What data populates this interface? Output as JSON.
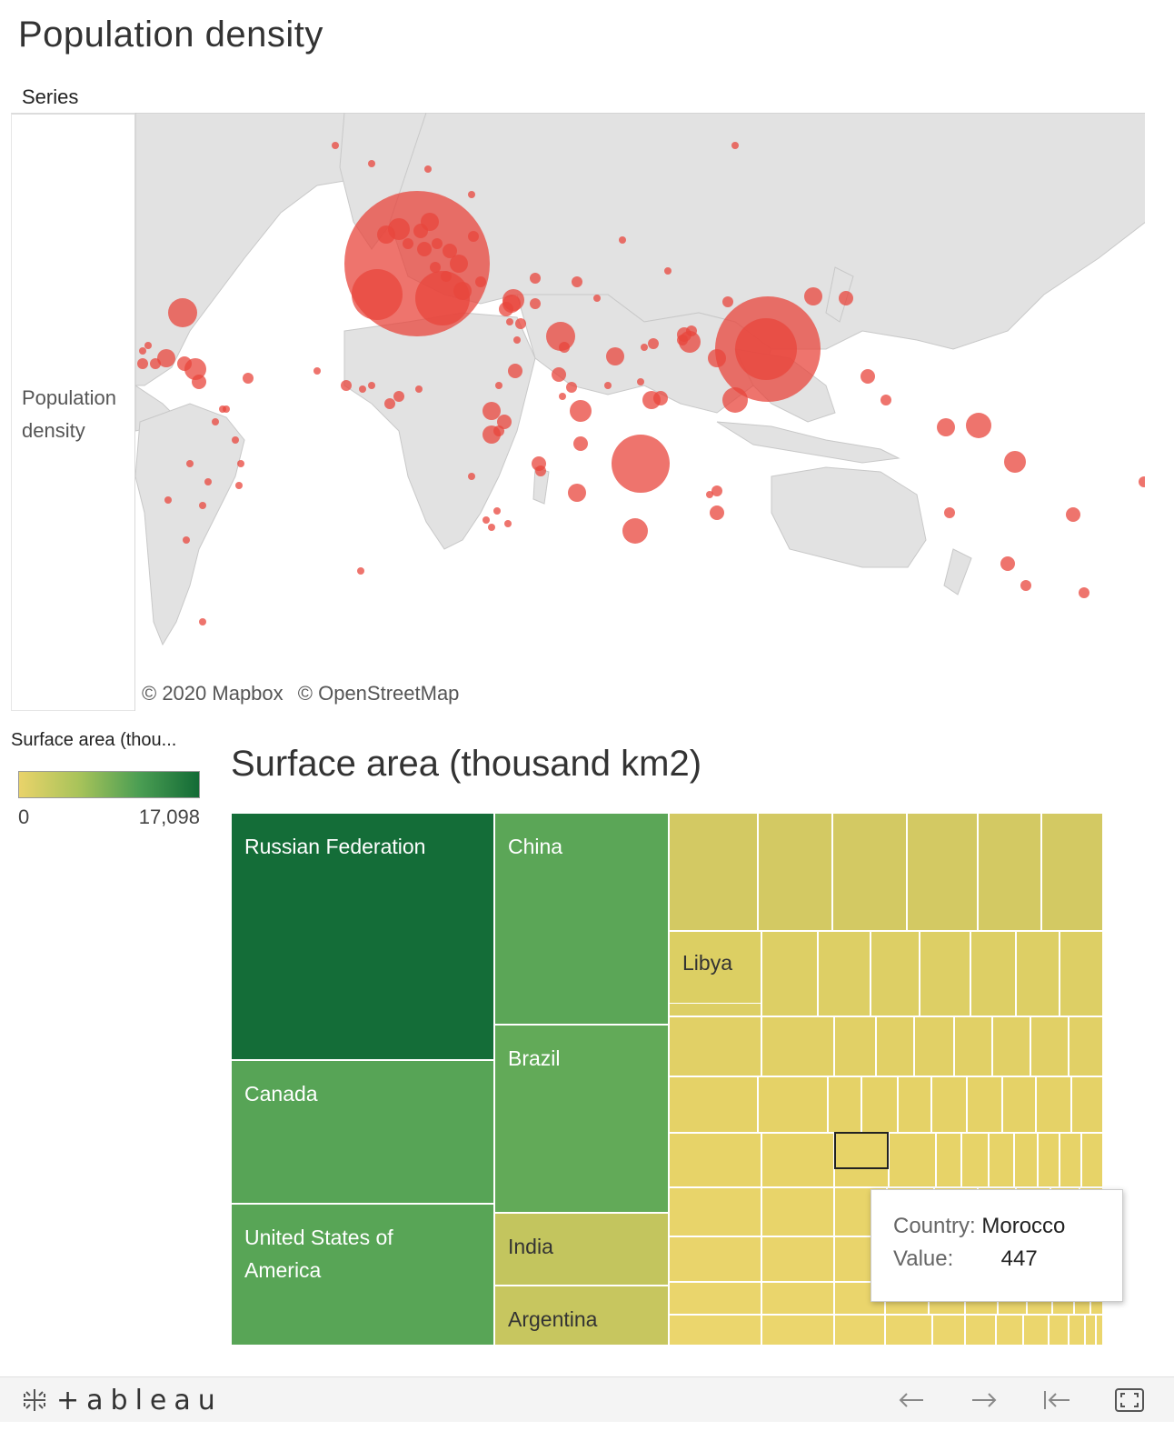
{
  "dashboard": {
    "map_title": "Population density",
    "series_label": "Series",
    "map_y_label_line1": "Population",
    "map_y_label_line2": "density",
    "attribution": [
      "© 2020 Mapbox",
      "© OpenStreetMap"
    ],
    "bubble_color": "#e8453c"
  },
  "legend": {
    "title": "Surface area (thou...",
    "min": "0",
    "max": "17,098",
    "colors": [
      "#e9d36a",
      "#a8c35a",
      "#4b9e53",
      "#136b36"
    ]
  },
  "treemap": {
    "title": "Surface area (thousand km2)",
    "labels": {
      "russia": "Russian Federation",
      "canada": "Canada",
      "usa_line1": "United States of",
      "usa_line2": "America",
      "china": "China",
      "brazil": "Brazil",
      "india": "India",
      "argentina": "Argentina",
      "libya": "Libya"
    }
  },
  "chart_data": {
    "type": "treemap",
    "title": "Surface area (thousand km2)",
    "color_scale": {
      "min": 0,
      "max": 17098
    },
    "labeled_cells": [
      {
        "country": "Russian Federation",
        "value": 17098
      },
      {
        "country": "Canada"
      },
      {
        "country": "United States of America"
      },
      {
        "country": "China"
      },
      {
        "country": "Brazil"
      },
      {
        "country": "India"
      },
      {
        "country": "Argentina"
      },
      {
        "country": "Libya"
      }
    ]
  },
  "tooltip": {
    "country_key": "Country:",
    "country_val": "Morocco",
    "value_key": "Value:",
    "value_val": "447"
  },
  "footer": {
    "logo": "+ableau",
    "icons": [
      "back-arrow-icon",
      "forward-arrow-icon",
      "reset-icon",
      "fullscreen-icon"
    ]
  }
}
